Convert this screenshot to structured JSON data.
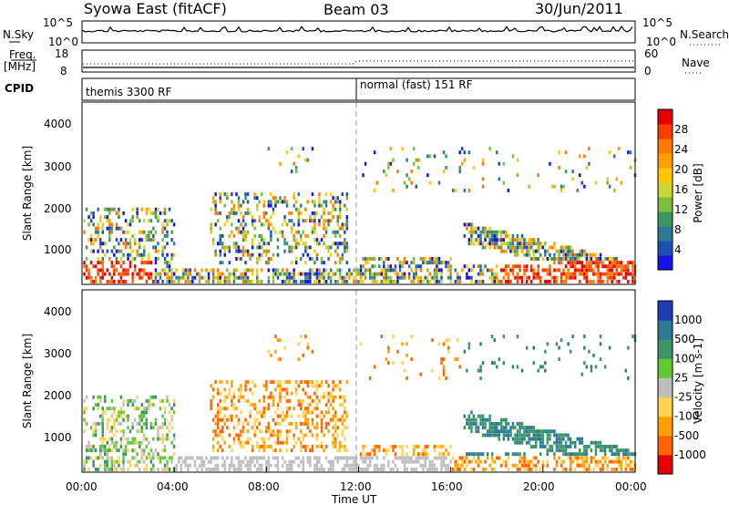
{
  "header": {
    "station": "Syowa East (fitACF)",
    "beam": "Beam 03",
    "date": "30/Jun/2011"
  },
  "top_panels": {
    "nsky_label": "N.Sky",
    "nsky_ticks": [
      "10^5",
      "10^0"
    ],
    "nsearch_label": "N.Search",
    "nsearch_ticks": [
      "10^5",
      "10^0"
    ],
    "freq_label": "Freq.",
    "freq_unit": "[MHz]",
    "freq_ticks": [
      "18",
      "8"
    ],
    "nave_label": "Nave",
    "nave_ticks": [
      "60",
      "0"
    ],
    "cpid_label": "CPID",
    "cpid_segments": [
      {
        "label": "themis 3300 RF",
        "start_hour": 0
      },
      {
        "label": "normal (fast) 151 RF",
        "start_hour": 12
      }
    ]
  },
  "chart_data": [
    {
      "type": "heatmap",
      "variable": "power",
      "ylabel": "Slant Range [km]",
      "ylim": [
        180,
        4500
      ],
      "yticks": [
        "1000",
        "2000",
        "3000",
        "4000"
      ],
      "xlim_hours": [
        0,
        24
      ],
      "colorbar_label": "Power [dB]",
      "colorbar_ticks": [
        "4",
        "8",
        "12",
        "16",
        "20",
        "24",
        "28"
      ],
      "colorscale": [
        "#1414e6",
        "#1e50b4",
        "#2d7a96",
        "#3c9664",
        "#7dbe3c",
        "#c8d732",
        "#ffc800",
        "#ffa000",
        "#ff7800",
        "#ff3c00",
        "#e60000"
      ]
    },
    {
      "type": "heatmap",
      "variable": "velocity",
      "ylabel": "Slant Range [km]",
      "ylim": [
        180,
        4500
      ],
      "yticks": [
        "1000",
        "2000",
        "3000",
        "4000"
      ],
      "xlim_hours": [
        0,
        24
      ],
      "colorbar_label": "Velocity [m s-1]",
      "colorbar_ticks": [
        "1000",
        "500",
        "100",
        "25",
        "-25",
        "-100",
        "-500",
        "-1000"
      ],
      "colorscale": [
        "#1e3cb4",
        "#2d7a96",
        "#3c9664",
        "#64c832",
        "#bebebe",
        "#ffd250",
        "#ffa000",
        "#ff6400",
        "#e60000"
      ],
      "ground_scatter_color": "#bebebe"
    }
  ],
  "xaxis": {
    "ticks": [
      "00:00",
      "04:00",
      "08:00",
      "12:00",
      "16:00",
      "20:00",
      "00:00"
    ],
    "label": "Time UT"
  }
}
